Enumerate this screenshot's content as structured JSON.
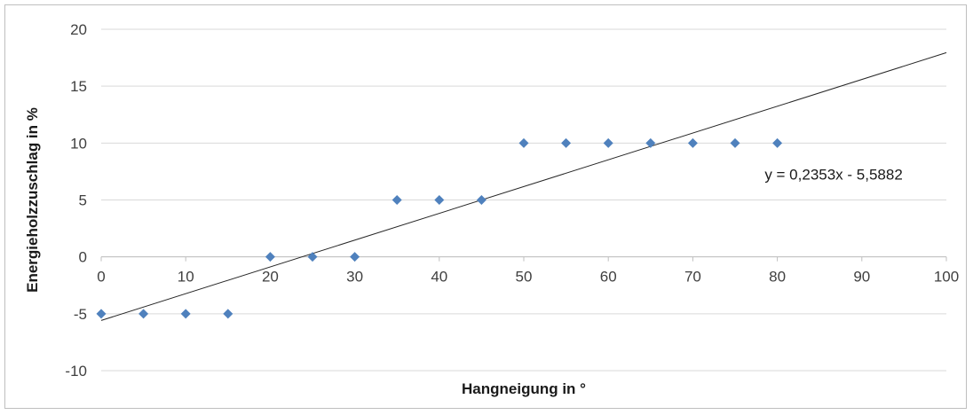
{
  "chart_data": {
    "type": "scatter",
    "xlabel": "Hangneigung in °",
    "ylabel": "Energieholzzuschlag in %",
    "xlim": [
      0,
      100
    ],
    "ylim": [
      -10,
      20
    ],
    "x_ticks": [
      0,
      10,
      20,
      30,
      40,
      50,
      60,
      70,
      80,
      90,
      100
    ],
    "y_ticks": [
      -10,
      -5,
      0,
      5,
      10,
      15,
      20
    ],
    "grid": "horizontal",
    "legend": "none",
    "series": [
      {
        "x": [
          0,
          5,
          10,
          15,
          20,
          25,
          30,
          35,
          40,
          45,
          50,
          55,
          60,
          65,
          70,
          75,
          80
        ],
        "y": [
          -5,
          -5,
          -5,
          -5,
          0,
          0,
          0,
          5,
          5,
          5,
          10,
          10,
          10,
          10,
          10,
          10,
          10
        ],
        "color": "#4f81bd",
        "marker": "diamond"
      }
    ],
    "trendline": {
      "type": "linear",
      "slope": 0.2353,
      "intercept": -5.5882,
      "x_range": [
        0,
        100
      ],
      "color": "#262626",
      "equation_label": "y = 0,2353x - 5,5882"
    }
  }
}
